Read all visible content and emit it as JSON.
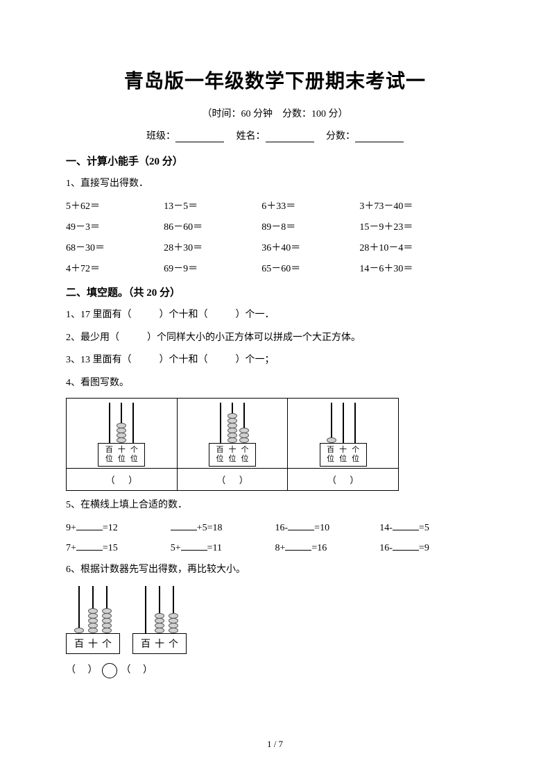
{
  "title": "青岛版一年级数学下册期末考试一",
  "subtitle": "（时间：60 分钟　分数：100 分）",
  "info": {
    "class_label": "班级：",
    "name_label": "姓名：",
    "score_label": "分数："
  },
  "s1": {
    "head": "一、计算小能手（20 分）",
    "q1": "1、直接写出得数．",
    "grid": [
      [
        "5＋62＝",
        "13－5＝",
        "6＋33＝",
        "3＋73－40＝"
      ],
      [
        "49－3＝",
        "86－60＝",
        "89－8＝",
        "15－9＋23＝"
      ],
      [
        "68－30＝",
        "28＋30＝",
        "36＋40＝",
        "28＋10－4＝"
      ],
      [
        "4＋72＝",
        "69－9＝",
        "65－60＝",
        "14－6＋30＝"
      ]
    ]
  },
  "s2": {
    "head": "二、填空题。（共 20 分）",
    "q1a": "1、17 里面有（",
    "q1b": "）个十和（",
    "q1c": "）个一．",
    "q2a": "2、最少用（",
    "q2b": "）个同样大小的小正方体可以拼成一个大正方体。",
    "q3a": "3、13 里面有（",
    "q3b": "）个十和（",
    "q3c": "）个一；",
    "q4": "4、看图写数。",
    "labels": {
      "bai": "百",
      "shi": "十",
      "ge": "个",
      "wei": "位"
    },
    "abacus_set": [
      {
        "beads": [
          0,
          4,
          0
        ]
      },
      {
        "beads": [
          0,
          6,
          3
        ]
      },
      {
        "beads": [
          1,
          0,
          0
        ]
      }
    ],
    "q5": "5、在横线上填上合适的数．",
    "fill": [
      [
        "9+",
        "=12"
      ],
      [
        "",
        "+5=18"
      ],
      [
        "16-",
        "=10"
      ],
      [
        "14-",
        "=5"
      ],
      [
        "7+",
        "=15"
      ],
      [
        "5+",
        "=11"
      ],
      [
        "8+",
        "=16"
      ],
      [
        "16-",
        "=9"
      ]
    ],
    "q6": "6、根据计数器先写出得数，再比较大小。",
    "counters": [
      {
        "beads": [
          1,
          5,
          5
        ]
      },
      {
        "beads": [
          0,
          4,
          4
        ]
      }
    ]
  },
  "page": "1 / 7",
  "colors": {
    "bg": "#ffffff",
    "text": "#000000",
    "bead_fill": "#d0d0d0",
    "bead_border": "#555555"
  }
}
